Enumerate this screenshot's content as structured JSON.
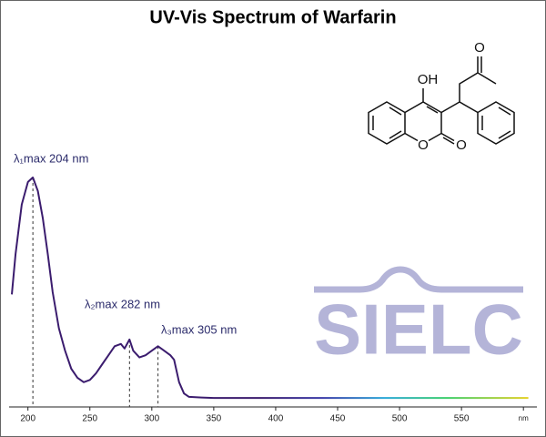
{
  "chart_data": {
    "type": "line",
    "title": "UV-Vis Spectrum of Warfarin",
    "x": [
      187,
      190,
      195,
      200,
      204,
      208,
      212,
      216,
      220,
      225,
      230,
      235,
      240,
      245,
      250,
      255,
      260,
      265,
      270,
      275,
      278,
      282,
      285,
      290,
      295,
      300,
      305,
      310,
      315,
      318,
      322,
      326,
      330,
      340,
      350,
      400,
      450,
      500,
      550,
      604
    ],
    "series": [
      {
        "color": "#3b1c6e",
        "values": [
          0.46,
          0.64,
          0.86,
          0.96,
          0.98,
          0.92,
          0.8,
          0.64,
          0.47,
          0.31,
          0.21,
          0.13,
          0.09,
          0.07,
          0.08,
          0.11,
          0.15,
          0.19,
          0.23,
          0.24,
          0.22,
          0.26,
          0.21,
          0.18,
          0.19,
          0.21,
          0.23,
          0.21,
          0.19,
          0.17,
          0.07,
          0.02,
          0.005,
          0.002,
          0,
          0,
          0,
          0,
          0,
          0
        ]
      }
    ],
    "xlim": [
      187,
      605
    ],
    "ylim": [
      -0.04,
      1.0
    ],
    "xticks": [
      200,
      250,
      300,
      350,
      400,
      450,
      500,
      550,
      {
        "value": 600,
        "label": "nm"
      }
    ],
    "annotations": [
      {
        "label": "λ₁max  204 nm",
        "x": 204
      },
      {
        "label": "λ₂max  282 nm",
        "x": 282
      },
      {
        "label": "λ₃max  305 nm",
        "x": 305
      }
    ]
  },
  "structure": {
    "atoms": [
      "OH",
      "O",
      "O",
      "O"
    ]
  },
  "watermark": "SIELC"
}
